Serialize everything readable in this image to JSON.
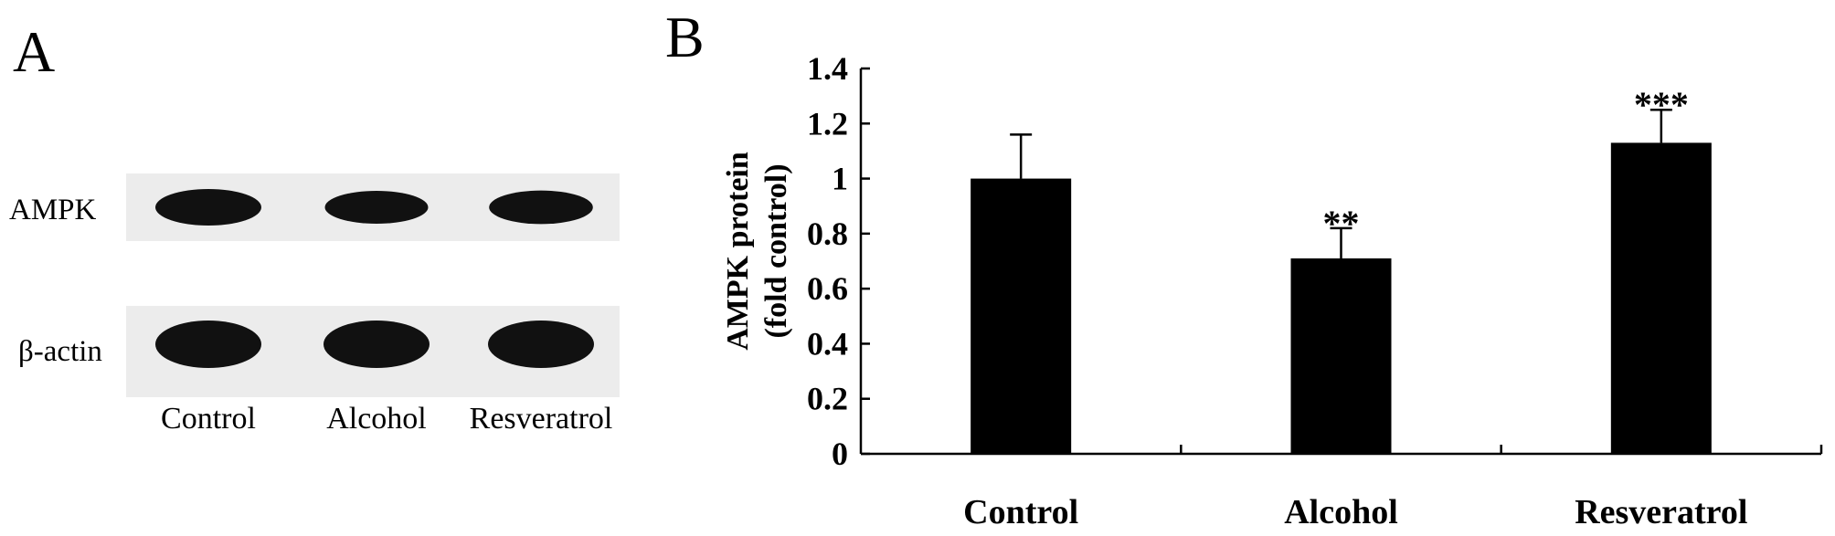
{
  "panel_a": {
    "letter": "A",
    "blots": [
      {
        "label": "AMPK",
        "band_intensity": [
          1.0,
          0.75,
          0.8
        ]
      },
      {
        "label": "β-actin",
        "band_intensity": [
          1.0,
          1.0,
          1.0
        ]
      }
    ],
    "lanes": [
      "Control",
      "Alcohol",
      "Resveratrol"
    ]
  },
  "panel_b": {
    "letter": "B"
  },
  "chart_data": {
    "type": "bar",
    "categories": [
      "Control",
      "Alcohol",
      "Resveratrol"
    ],
    "values": [
      1.0,
      0.71,
      1.13
    ],
    "error_upper": [
      0.16,
      0.11,
      0.12
    ],
    "significance": [
      "",
      "**",
      "***"
    ],
    "ylabel_line1": "AMPK protein",
    "ylabel_line2": "(fold control)",
    "xlabel": "",
    "ylim": [
      0,
      1.4
    ],
    "yticks": [
      "0",
      "0.2",
      "0.4",
      "0.6",
      "0.8",
      "1",
      "1.2",
      "1.4"
    ],
    "grid": false,
    "bar_color": "#000000"
  }
}
